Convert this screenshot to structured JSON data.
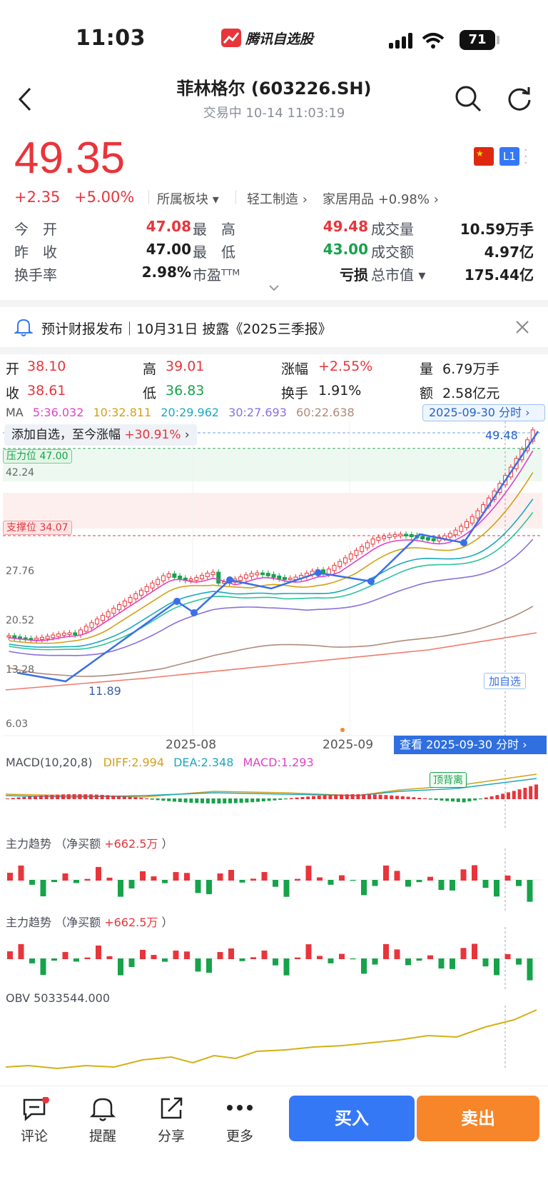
{
  "status": {
    "time": "11:03",
    "brand": "腾讯自选股",
    "battery": "71"
  },
  "nav": {
    "title": "菲林格尔 (603226.SH)",
    "subtitle": "交易中   10-14 11:03:19"
  },
  "quote": {
    "price": "49.35",
    "change": "+2.35",
    "change_pct": "+5.00%",
    "sector_label": "所属板块 ▾",
    "sector1": "轻工制造 ›",
    "sector2": "家居用品 +0.98% ›",
    "level_badge": "L1",
    "rows": [
      {
        "l1": "今　开",
        "v1": "47.08",
        "l2": "最　高",
        "v2": "49.48",
        "l3": "成交量",
        "v3": "10.59万手"
      },
      {
        "l1": "昨　收",
        "v1": "47.00",
        "l2": "最　低",
        "v2": "43.00",
        "l3": "成交额",
        "v3": "4.97亿"
      },
      {
        "l1": "换手率",
        "v1": "2.98%",
        "l2": "市盈ᵀᵀᴹ",
        "v2": "亏损",
        "l3": "总市值 ▾",
        "v3": "175.44亿"
      }
    ]
  },
  "notice": {
    "text": "预计财报发布｜10月31日 披露《2025三季报》"
  },
  "candle_info": {
    "open_label": "开",
    "open": "38.10",
    "high_label": "高",
    "high": "39.01",
    "chg_label": "涨幅",
    "chg": "+2.55%",
    "vol_label": "量",
    "vol": "6.79万手",
    "close_label": "收",
    "close": "38.61",
    "low_label": "低",
    "low": "36.83",
    "turn_label": "换手",
    "turn": "1.91%",
    "amt_label": "额",
    "amt": "2.58亿元"
  },
  "ma": {
    "label": "MA",
    "ma5": "5:36.032",
    "ma10": "10:32.811",
    "ma20": "20:29.962",
    "ma30": "30:27.693",
    "ma60": "60:22.638",
    "date_btn": "2025-09-30 分时 ›"
  },
  "chart": {
    "tip": "添加自选，至今涨幅",
    "tip_pct": "+30.91%",
    "pressure": "压力位 47.00",
    "support": "支撑位 34.07",
    "price_right": "49.48",
    "low_mark": "11.89",
    "add_mark": "加自选",
    "y_labels": [
      "42.24",
      "27.76",
      "20.52",
      "13.28",
      "6.03"
    ],
    "x_labels": [
      "2025-08",
      "2025-09"
    ],
    "view_btn": "查看 2025-09-30 分时 ›"
  },
  "chart_data": {
    "type": "candlestick",
    "y_ticks": [
      42.24,
      27.76,
      20.52,
      13.28,
      6.03
    ],
    "x_ticks": [
      "2025-08",
      "2025-09"
    ],
    "pressure": 47.0,
    "support": 34.07,
    "high_mark": 49.48,
    "low_mark": 11.89,
    "ma_values": {
      "MA5": 36.032,
      "MA10": 32.811,
      "MA20": 29.962,
      "MA30": 27.693,
      "MA60": 22.638
    },
    "macd": {
      "DIFF": 2.994,
      "DEA": 2.348,
      "MACD": 1.293
    },
    "obv": 5033544.0,
    "main_force_net": "+662.5万"
  },
  "macd": {
    "title": "MACD(10,20,8)",
    "diff": "DIFF:2.994",
    "dea": "DEA:2.348",
    "macd": "MACD:1.293",
    "tag": "顶背离"
  },
  "main_force": {
    "title": "主力趋势  （净买额",
    "val": "+662.5万",
    "close": "）"
  },
  "obv": {
    "title": "OBV   5033544.000"
  },
  "tabs": [
    {
      "label": "评论"
    },
    {
      "label": "提醒"
    },
    {
      "label": "分享"
    },
    {
      "label": "更多"
    }
  ],
  "buy": "买入",
  "sell": "卖出",
  "colors": {
    "up": "#e8353b",
    "down": "#16a34a",
    "accent": "#3478f6",
    "sell": "#f7862a"
  }
}
